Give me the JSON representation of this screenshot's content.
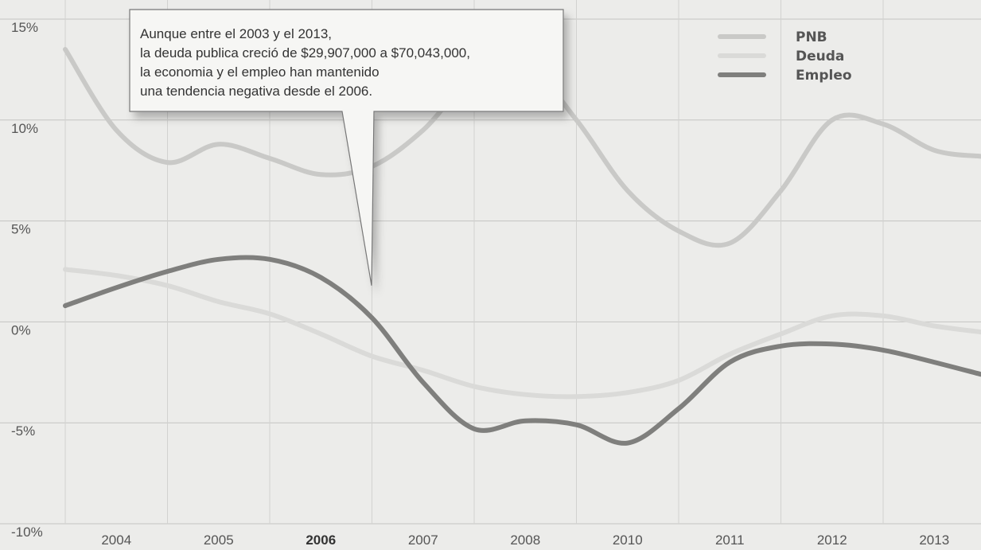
{
  "chart_data": {
    "type": "line",
    "categories": [
      "2004",
      "2005",
      "2006",
      "2007",
      "2008",
      "2010",
      "2011",
      "2012",
      "2013"
    ],
    "highlight_category": "2006",
    "ylim": [
      -10,
      15
    ],
    "yticks": [
      {
        "value": 15,
        "label": "15%"
      },
      {
        "value": 10,
        "label": "10%"
      },
      {
        "value": 5,
        "label": "5%"
      },
      {
        "value": 0,
        "label": "0%"
      },
      {
        "value": -5,
        "label": "-5%"
      },
      {
        "value": -10,
        "label": "-10%"
      }
    ],
    "grid": true,
    "legend_position": "top-right",
    "series": [
      {
        "name": "PNB",
        "color": "#c9c9c7",
        "x": [
          0.0,
          0.5,
          1.0,
          1.5,
          2.0,
          2.5,
          3.0,
          3.5,
          4.0,
          4.5,
          5.0,
          5.5,
          6.0,
          6.5,
          7.0,
          7.5,
          8.0,
          8.5,
          9.0
        ],
        "values": [
          13.5,
          9.5,
          7.9,
          8.8,
          8.1,
          7.3,
          7.7,
          9.5,
          12.2,
          12.8,
          10.0,
          6.5,
          4.5,
          3.9,
          6.5,
          10.0,
          9.8,
          8.5,
          8.2
        ]
      },
      {
        "name": "Deuda",
        "color": "#dadad8",
        "x": [
          0.0,
          0.5,
          1.0,
          1.5,
          2.0,
          2.5,
          3.0,
          3.5,
          4.0,
          4.5,
          5.0,
          5.5,
          6.0,
          6.5,
          7.0,
          7.5,
          8.0,
          8.5,
          9.0
        ],
        "values": [
          2.6,
          2.3,
          1.8,
          1.0,
          0.4,
          -0.6,
          -1.7,
          -2.4,
          -3.2,
          -3.6,
          -3.7,
          -3.5,
          -2.9,
          -1.6,
          -0.6,
          0.3,
          0.3,
          -0.2,
          -0.5
        ]
      },
      {
        "name": "Empleo",
        "color": "#7f7f7d",
        "x": [
          0.0,
          0.5,
          1.0,
          1.5,
          2.0,
          2.5,
          3.0,
          3.5,
          4.0,
          4.5,
          5.0,
          5.5,
          6.0,
          6.5,
          7.0,
          7.5,
          8.0,
          8.5,
          9.0
        ],
        "values": [
          0.8,
          1.7,
          2.5,
          3.1,
          3.1,
          2.2,
          0.2,
          -3.0,
          -5.3,
          -4.9,
          -5.1,
          -6.0,
          -4.3,
          -2.0,
          -1.2,
          -1.1,
          -1.4,
          -2.0,
          -2.6
        ]
      }
    ],
    "annotation": {
      "lines": [
        "Aunque entre el 2003 y el 2013,",
        "la deuda publica creció de $29,907,000 a $70,043,000,",
        "la economia y el empleo han mantenido",
        "una tendencia negativa desde el 2006."
      ],
      "points_to_category": "2006"
    }
  }
}
